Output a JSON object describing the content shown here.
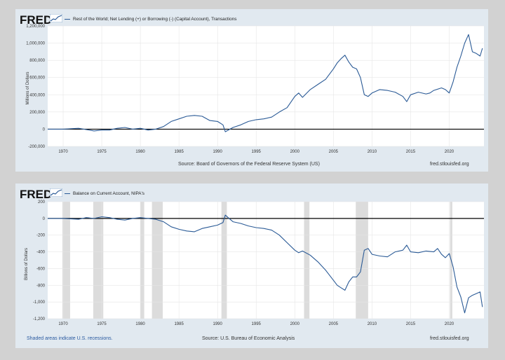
{
  "branding": {
    "logo_text": "FRED"
  },
  "source_colors": {
    "line": "#2a5a96",
    "zero_line": "#000000",
    "recession": "#dcdcdc",
    "plot_bg": "#ffffff",
    "panel_bg": "#e1e9f0",
    "grid": "#e6e6e6"
  },
  "top_panel": {
    "footer_source": "Source: Board of Governors of the Federal Reserve System (US)",
    "footer_site": "fred.stlouisfed.org"
  },
  "bottom_panel": {
    "footer_note": "Shaded areas indicate U.S. recessions.",
    "footer_source": "Source: U.S. Bureau of Economic Analysis",
    "footer_site": "fred.stlouisfed.org"
  },
  "chart_data": [
    {
      "type": "line",
      "series": [
        {
          "name": "Rest of the World; Net Lending (+) or Borrowing (-) (Capital Account), Transactions",
          "x": [
            1968,
            1970,
            1972,
            1974,
            1975,
            1976,
            1977,
            1978,
            1979,
            1980,
            1981,
            1982,
            1983,
            1984,
            1985,
            1986,
            1987,
            1988,
            1989,
            1990,
            1990.7,
            1991,
            1992,
            1993,
            1994,
            1995,
            1996,
            1997,
            1998,
            1999,
            2000,
            2000.5,
            2001,
            2002,
            2003,
            2004,
            2005,
            2005.5,
            2006,
            2006.5,
            2007,
            2007.5,
            2008,
            2008.5,
            2009,
            2009.5,
            2010,
            2011,
            2012,
            2013,
            2014,
            2014.5,
            2015,
            2016,
            2017,
            2017.5,
            2018,
            2019,
            2019.5,
            2020,
            2020.5,
            2021,
            2021.5,
            2022,
            2022.5,
            2023,
            2023.5,
            2024,
            2024.3
          ],
          "y": [
            0,
            0,
            10000,
            -20000,
            -10000,
            -10000,
            10000,
            20000,
            0,
            10000,
            -10000,
            0,
            30000,
            90000,
            120000,
            150000,
            160000,
            150000,
            100000,
            90000,
            50000,
            -30000,
            20000,
            50000,
            90000,
            110000,
            120000,
            140000,
            200000,
            250000,
            380000,
            420000,
            370000,
            460000,
            520000,
            580000,
            700000,
            770000,
            820000,
            860000,
            780000,
            720000,
            700000,
            600000,
            400000,
            380000,
            420000,
            460000,
            450000,
            430000,
            380000,
            320000,
            400000,
            430000,
            410000,
            420000,
            450000,
            480000,
            460000,
            420000,
            550000,
            720000,
            850000,
            1000000,
            1100000,
            900000,
            880000,
            850000,
            940000
          ]
        }
      ],
      "ylabel": "Millions of Dollars",
      "ylim": [
        -200000,
        1200000
      ],
      "yticks": [
        "1,200,000",
        "1,000,000",
        "800,000",
        "600,000",
        "400,000",
        "200,000",
        "0",
        "-200,000"
      ],
      "xticks": [
        "1970",
        "1975",
        "1980",
        "1985",
        "1990",
        "1995",
        "2000",
        "2005",
        "2010",
        "2015",
        "2020"
      ],
      "xlim": [
        1968,
        2024.5
      ],
      "grid": true
    },
    {
      "type": "line",
      "series": [
        {
          "name": "Balance on Current Account, NIPA's",
          "x": [
            1968,
            1970,
            1972,
            1973,
            1974,
            1975,
            1976,
            1977,
            1978,
            1979,
            1980,
            1981,
            1982,
            1983,
            1984,
            1985,
            1986,
            1987,
            1988,
            1989,
            1990,
            1990.7,
            1991,
            1991.5,
            1992,
            1993,
            1994,
            1995,
            1996,
            1997,
            1998,
            1999,
            2000,
            2000.5,
            2001,
            2002,
            2003,
            2004,
            2005,
            2005.5,
            2006,
            2006.5,
            2007,
            2007.5,
            2008,
            2008.5,
            2009,
            2009.5,
            2010,
            2011,
            2012,
            2013,
            2014,
            2014.5,
            2015,
            2016,
            2017,
            2018,
            2018.5,
            2019,
            2019.5,
            2020,
            2020.5,
            2021,
            2021.5,
            2022,
            2022.5,
            2023,
            2023.5,
            2024,
            2024.3
          ],
          "y": [
            0,
            0,
            -10,
            10,
            0,
            20,
            10,
            -10,
            -20,
            0,
            10,
            0,
            -10,
            -40,
            -100,
            -130,
            -150,
            -160,
            -120,
            -100,
            -80,
            -50,
            40,
            0,
            -40,
            -60,
            -90,
            -110,
            -120,
            -140,
            -200,
            -290,
            -380,
            -410,
            -390,
            -440,
            -520,
            -620,
            -740,
            -800,
            -830,
            -860,
            -760,
            -700,
            -700,
            -640,
            -380,
            -360,
            -430,
            -450,
            -460,
            -400,
            -380,
            -320,
            -400,
            -410,
            -390,
            -400,
            -360,
            -430,
            -470,
            -420,
            -580,
            -820,
            -940,
            -1130,
            -950,
            -920,
            -900,
            -880,
            -1060
          ]
        }
      ],
      "ylabel": "Billions of Dollars",
      "ylim": [
        -1200,
        200
      ],
      "yticks": [
        "200",
        "0",
        "-200",
        "-400",
        "-600",
        "-800",
        "-1,000",
        "-1,200"
      ],
      "xticks": [
        "1970",
        "1975",
        "1980",
        "1985",
        "1990",
        "1995",
        "2000",
        "2005",
        "2010",
        "2015",
        "2020"
      ],
      "xlim": [
        1968,
        2024.5
      ],
      "recessions": [
        [
          1969.9,
          1970.9
        ],
        [
          1973.9,
          1975.2
        ],
        [
          1980.0,
          1980.5
        ],
        [
          1981.5,
          1982.9
        ],
        [
          1990.5,
          1991.2
        ],
        [
          2001.2,
          2001.9
        ],
        [
          2007.9,
          2009.5
        ],
        [
          2020.1,
          2020.4
        ]
      ],
      "grid": true
    }
  ]
}
